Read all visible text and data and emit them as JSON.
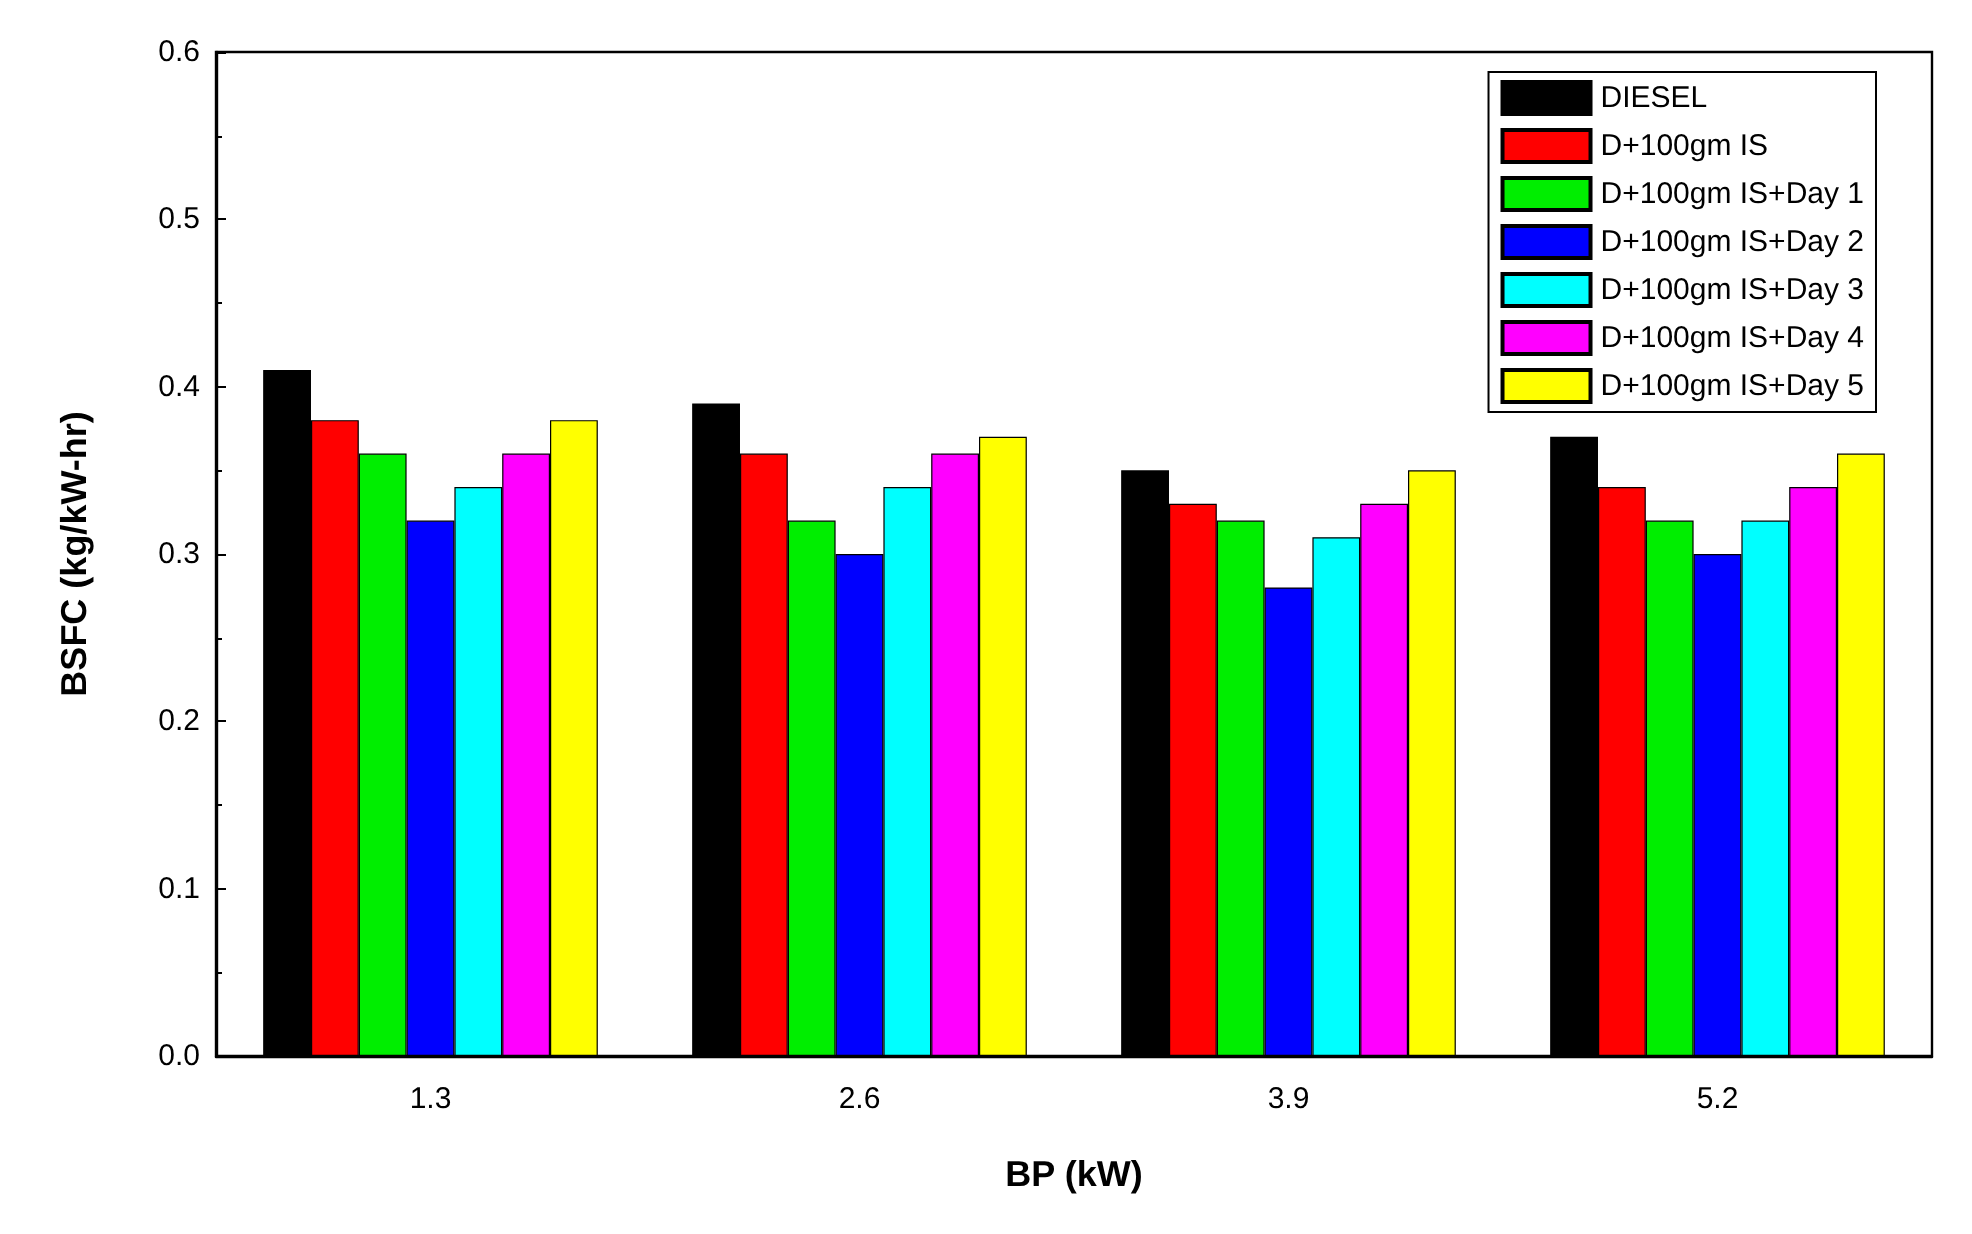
{
  "chart_data": {
    "type": "bar",
    "xlabel": "BP (kW)",
    "ylabel": "BSFC (kg/kW-hr)",
    "categories": [
      "1.3",
      "2.6",
      "3.9",
      "5.2"
    ],
    "series": [
      {
        "name": "DIESEL",
        "color": "#000000",
        "values": [
          0.41,
          0.39,
          0.35,
          0.37
        ]
      },
      {
        "name": "D+100gm IS",
        "color": "#ff0000",
        "values": [
          0.38,
          0.36,
          0.33,
          0.34
        ]
      },
      {
        "name": "D+100gm IS+Day 1",
        "color": "#00ee00",
        "values": [
          0.36,
          0.32,
          0.32,
          0.32
        ]
      },
      {
        "name": "D+100gm IS+Day 2",
        "color": "#0000ff",
        "values": [
          0.32,
          0.3,
          0.28,
          0.3
        ]
      },
      {
        "name": "D+100gm IS+Day 3",
        "color": "#00ffff",
        "values": [
          0.34,
          0.34,
          0.31,
          0.32
        ]
      },
      {
        "name": "D+100gm IS+Day 4",
        "color": "#ff00ff",
        "values": [
          0.36,
          0.36,
          0.33,
          0.34
        ]
      },
      {
        "name": "D+100gm IS+Day 5",
        "color": "#ffff00",
        "values": [
          0.38,
          0.37,
          0.35,
          0.36
        ]
      }
    ],
    "ylim": [
      0,
      0.6
    ],
    "yticks": [
      {
        "value": 0,
        "label": "0.0"
      },
      0.1,
      0.2,
      0.3,
      0.4,
      0.5,
      0.6
    ],
    "grid": false,
    "legend": "top right"
  }
}
